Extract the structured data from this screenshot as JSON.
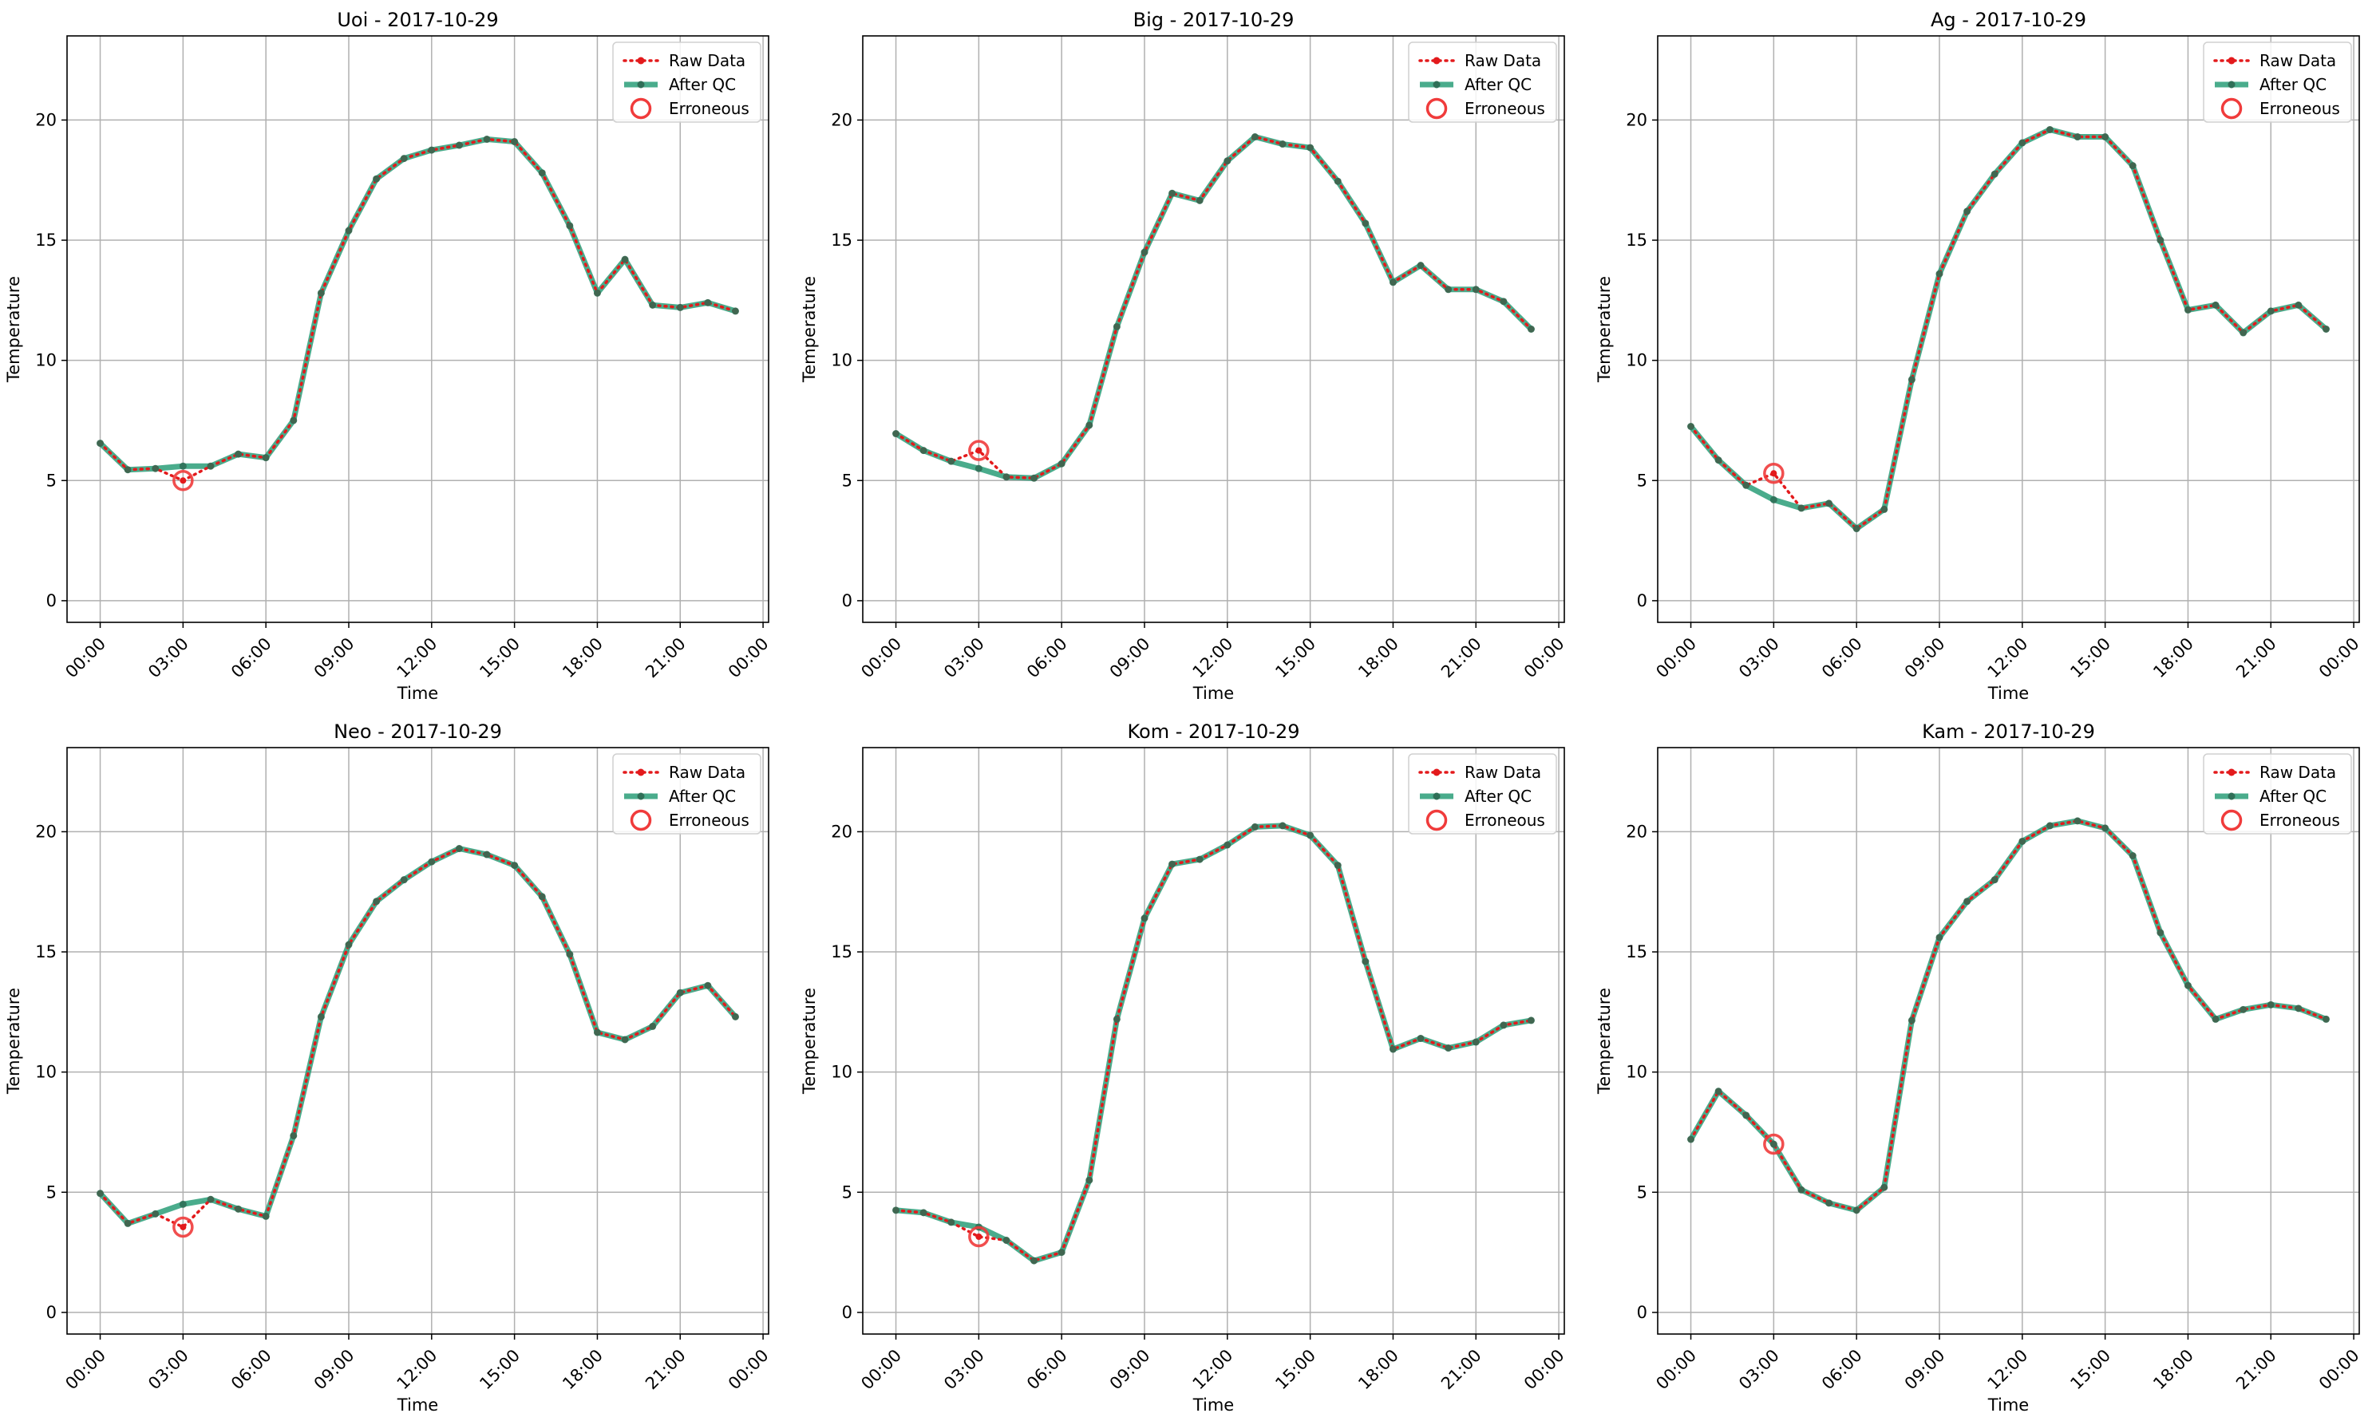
{
  "colors": {
    "raw": "#e31a1c",
    "qc": "#2a9d78",
    "qc_marker": "#2f6f57",
    "erroneous": "#f03b3b",
    "grid": "#b0b0b0",
    "axis": "#000000"
  },
  "legend": {
    "raw_label": "Raw Data",
    "qc_label": "After QC",
    "err_label": "Erroneous"
  },
  "chart_data": [
    {
      "type": "line",
      "title": "Uoi - 2017-10-29",
      "xlabel": "Time",
      "ylabel": "Temperature",
      "xticks": [
        "00:00",
        "03:00",
        "06:00",
        "09:00",
        "12:00",
        "15:00",
        "18:00",
        "21:00",
        "00:00"
      ],
      "yticks": [
        0,
        5,
        10,
        15,
        20
      ],
      "ylim": [
        -0.9,
        23.5
      ],
      "xlim_hours": [
        -1.2,
        24.2
      ],
      "grid": true,
      "legend_position": "top-right",
      "hours": [
        0,
        1,
        2,
        3,
        4,
        5,
        6,
        7,
        8,
        9,
        10,
        11,
        12,
        13,
        14,
        15,
        16,
        17,
        18,
        19,
        20,
        21,
        22,
        23
      ],
      "series": [
        {
          "name": "Raw Data",
          "values": [
            6.55,
            5.45,
            5.5,
            5.0,
            5.6,
            6.1,
            5.95,
            7.5,
            12.8,
            15.4,
            17.55,
            18.4,
            18.75,
            18.95,
            19.2,
            19.1,
            17.8,
            15.6,
            12.8,
            14.2,
            12.3,
            12.2,
            12.4,
            12.05
          ]
        },
        {
          "name": "After QC",
          "values": [
            6.55,
            5.45,
            5.5,
            5.6,
            5.6,
            6.1,
            5.95,
            7.5,
            12.8,
            15.4,
            17.55,
            18.4,
            18.75,
            18.95,
            19.2,
            19.1,
            17.8,
            15.6,
            12.8,
            14.2,
            12.3,
            12.2,
            12.4,
            12.05
          ]
        }
      ],
      "erroneous_points": [
        {
          "hour": 3,
          "value": 5.0
        }
      ]
    },
    {
      "type": "line",
      "title": "Big - 2017-10-29",
      "xlabel": "Time",
      "ylabel": "Temperature",
      "xticks": [
        "00:00",
        "03:00",
        "06:00",
        "09:00",
        "12:00",
        "15:00",
        "18:00",
        "21:00",
        "00:00"
      ],
      "yticks": [
        0,
        5,
        10,
        15,
        20
      ],
      "ylim": [
        -0.9,
        23.5
      ],
      "xlim_hours": [
        -1.2,
        24.2
      ],
      "grid": true,
      "legend_position": "top-right",
      "hours": [
        0,
        1,
        2,
        3,
        4,
        5,
        6,
        7,
        8,
        9,
        10,
        11,
        12,
        13,
        14,
        15,
        16,
        17,
        18,
        19,
        20,
        21,
        22,
        23
      ],
      "series": [
        {
          "name": "Raw Data",
          "values": [
            6.95,
            6.25,
            5.8,
            6.25,
            5.15,
            5.1,
            5.7,
            7.3,
            11.4,
            14.5,
            16.95,
            16.65,
            18.3,
            19.3,
            19.0,
            18.85,
            17.45,
            15.7,
            13.25,
            13.95,
            12.95,
            12.95,
            12.45,
            11.3
          ]
        },
        {
          "name": "After QC",
          "values": [
            6.95,
            6.25,
            5.8,
            5.5,
            5.15,
            5.1,
            5.7,
            7.3,
            11.4,
            14.5,
            16.95,
            16.65,
            18.3,
            19.3,
            19.0,
            18.85,
            17.45,
            15.7,
            13.25,
            13.95,
            12.95,
            12.95,
            12.45,
            11.3
          ]
        }
      ],
      "erroneous_points": [
        {
          "hour": 3,
          "value": 6.25
        }
      ]
    },
    {
      "type": "line",
      "title": "Ag - 2017-10-29",
      "xlabel": "Time",
      "ylabel": "Temperature",
      "xticks": [
        "00:00",
        "03:00",
        "06:00",
        "09:00",
        "12:00",
        "15:00",
        "18:00",
        "21:00",
        "00:00"
      ],
      "yticks": [
        0,
        5,
        10,
        15,
        20
      ],
      "ylim": [
        -0.9,
        23.5
      ],
      "xlim_hours": [
        -1.2,
        24.2
      ],
      "grid": true,
      "legend_position": "top-right",
      "hours": [
        0,
        1,
        2,
        3,
        4,
        5,
        6,
        7,
        8,
        9,
        10,
        11,
        12,
        13,
        14,
        15,
        16,
        17,
        18,
        19,
        20,
        21,
        22,
        23
      ],
      "series": [
        {
          "name": "Raw Data",
          "values": [
            7.25,
            5.85,
            4.8,
            5.3,
            3.85,
            4.05,
            3.0,
            3.8,
            9.2,
            13.6,
            16.2,
            17.75,
            19.05,
            19.6,
            19.3,
            19.3,
            18.1,
            15.0,
            12.1,
            12.3,
            11.15,
            12.05,
            12.3,
            11.3
          ]
        },
        {
          "name": "After QC",
          "values": [
            7.25,
            5.85,
            4.8,
            4.2,
            3.85,
            4.05,
            3.0,
            3.8,
            9.2,
            13.6,
            16.2,
            17.75,
            19.05,
            19.6,
            19.3,
            19.3,
            18.1,
            15.0,
            12.1,
            12.3,
            11.15,
            12.05,
            12.3,
            11.3
          ]
        }
      ],
      "erroneous_points": [
        {
          "hour": 3,
          "value": 5.3
        }
      ]
    },
    {
      "type": "line",
      "title": "Neo - 2017-10-29",
      "xlabel": "Time",
      "ylabel": "Temperature",
      "xticks": [
        "00:00",
        "03:00",
        "06:00",
        "09:00",
        "12:00",
        "15:00",
        "18:00",
        "21:00",
        "00:00"
      ],
      "yticks": [
        0,
        5,
        10,
        15,
        20
      ],
      "ylim": [
        -0.9,
        23.5
      ],
      "xlim_hours": [
        -1.2,
        24.2
      ],
      "grid": true,
      "legend_position": "top-right",
      "hours": [
        0,
        1,
        2,
        3,
        4,
        5,
        6,
        7,
        8,
        9,
        10,
        11,
        12,
        13,
        14,
        15,
        16,
        17,
        18,
        19,
        20,
        21,
        22,
        23
      ],
      "series": [
        {
          "name": "Raw Data",
          "values": [
            4.95,
            3.7,
            4.1,
            3.55,
            4.7,
            4.3,
            4.0,
            7.35,
            12.3,
            15.3,
            17.1,
            18.0,
            18.75,
            19.3,
            19.05,
            18.6,
            17.3,
            14.9,
            11.65,
            11.35,
            11.9,
            13.3,
            13.6,
            12.3
          ]
        },
        {
          "name": "After QC",
          "values": [
            4.95,
            3.7,
            4.1,
            4.5,
            4.7,
            4.3,
            4.0,
            7.35,
            12.3,
            15.3,
            17.1,
            18.0,
            18.75,
            19.3,
            19.05,
            18.6,
            17.3,
            14.9,
            11.65,
            11.35,
            11.9,
            13.3,
            13.6,
            12.3
          ]
        }
      ],
      "erroneous_points": [
        {
          "hour": 3,
          "value": 3.55
        }
      ]
    },
    {
      "type": "line",
      "title": "Kom - 2017-10-29",
      "xlabel": "Time",
      "ylabel": "Temperature",
      "xticks": [
        "00:00",
        "03:00",
        "06:00",
        "09:00",
        "12:00",
        "15:00",
        "18:00",
        "21:00",
        "00:00"
      ],
      "yticks": [
        0,
        5,
        10,
        15,
        20
      ],
      "ylim": [
        -0.9,
        23.5
      ],
      "xlim_hours": [
        -1.2,
        24.2
      ],
      "grid": true,
      "legend_position": "top-right",
      "hours": [
        0,
        1,
        2,
        3,
        4,
        5,
        6,
        7,
        8,
        9,
        10,
        11,
        12,
        13,
        14,
        15,
        16,
        17,
        18,
        19,
        20,
        21,
        22,
        23
      ],
      "series": [
        {
          "name": "Raw Data",
          "values": [
            4.25,
            4.15,
            3.75,
            3.15,
            3.0,
            2.15,
            2.5,
            5.5,
            12.2,
            16.4,
            18.65,
            18.85,
            19.45,
            20.2,
            20.25,
            19.85,
            18.6,
            14.6,
            10.95,
            11.4,
            11.0,
            11.25,
            11.95,
            12.15
          ]
        },
        {
          "name": "After QC",
          "values": [
            4.25,
            4.15,
            3.75,
            3.55,
            3.0,
            2.15,
            2.5,
            5.5,
            12.2,
            16.4,
            18.65,
            18.85,
            19.45,
            20.2,
            20.25,
            19.85,
            18.6,
            14.6,
            10.95,
            11.4,
            11.0,
            11.25,
            11.95,
            12.15
          ]
        }
      ],
      "erroneous_points": [
        {
          "hour": 3,
          "value": 3.15
        }
      ]
    },
    {
      "type": "line",
      "title": "Kam - 2017-10-29",
      "xlabel": "Time",
      "ylabel": "Temperature",
      "xticks": [
        "00:00",
        "03:00",
        "06:00",
        "09:00",
        "12:00",
        "15:00",
        "18:00",
        "21:00",
        "00:00"
      ],
      "yticks": [
        0,
        5,
        10,
        15,
        20
      ],
      "ylim": [
        -0.9,
        23.5
      ],
      "xlim_hours": [
        -1.2,
        24.2
      ],
      "grid": true,
      "legend_position": "top-right",
      "hours": [
        0,
        1,
        2,
        3,
        4,
        5,
        6,
        7,
        8,
        9,
        10,
        11,
        12,
        13,
        14,
        15,
        16,
        17,
        18,
        19,
        20,
        21,
        22,
        23
      ],
      "series": [
        {
          "name": "Raw Data",
          "values": [
            7.2,
            9.2,
            8.2,
            7.0,
            5.1,
            4.55,
            4.25,
            5.2,
            12.15,
            15.6,
            17.1,
            18.0,
            19.6,
            20.25,
            20.45,
            20.15,
            19.0,
            15.8,
            13.6,
            12.2,
            12.6,
            12.8,
            12.65,
            12.2
          ]
        },
        {
          "name": "After QC",
          "values": [
            7.2,
            9.2,
            8.2,
            7.0,
            5.1,
            4.55,
            4.25,
            5.2,
            12.15,
            15.6,
            17.1,
            18.0,
            19.6,
            20.25,
            20.45,
            20.15,
            19.0,
            15.8,
            13.6,
            12.2,
            12.6,
            12.8,
            12.65,
            12.2
          ]
        }
      ],
      "erroneous_points": [
        {
          "hour": 3,
          "value": 7.0
        }
      ]
    }
  ]
}
